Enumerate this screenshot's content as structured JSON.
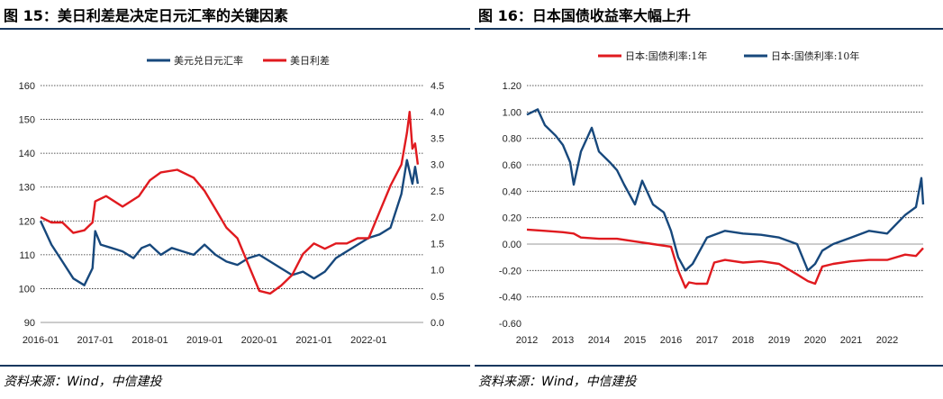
{
  "left": {
    "title": "图 15：美日利差是决定日元汇率的关键因素",
    "source": "资料来源：Wind，中信建投",
    "chart_data": {
      "type": "line",
      "x_labels": [
        "2016-01",
        "2017-01",
        "2018-01",
        "2019-01",
        "2020-01",
        "2021-01",
        "2022-01"
      ],
      "y_left": {
        "min": 90,
        "max": 160,
        "step": 10,
        "ticks": [
          "90",
          "100",
          "110",
          "120",
          "130",
          "140",
          "150",
          "160"
        ]
      },
      "y_right": {
        "min": 0.0,
        "max": 4.5,
        "step": 0.5,
        "ticks": [
          "0.0",
          "0.5",
          "1.0",
          "1.5",
          "2.0",
          "2.5",
          "3.0",
          "3.5",
          "4.0",
          "4.5"
        ]
      },
      "series": [
        {
          "name": "美元兑日元汇率",
          "axis": "left",
          "color": "#17487c",
          "x": [
            0,
            0.2,
            0.4,
            0.6,
            0.8,
            0.95,
            1.0,
            1.1,
            1.3,
            1.5,
            1.7,
            1.85,
            2.0,
            2.2,
            2.4,
            2.6,
            2.8,
            3.0,
            3.2,
            3.4,
            3.6,
            3.8,
            4.0,
            4.2,
            4.4,
            4.6,
            4.8,
            5.0,
            5.2,
            5.4,
            5.6,
            5.8,
            6.0,
            6.2,
            6.4,
            6.6,
            6.7,
            6.8,
            6.85,
            6.9
          ],
          "values": [
            120,
            113,
            108,
            103,
            101,
            106,
            117,
            113,
            112,
            111,
            109,
            112,
            113,
            110,
            112,
            111,
            110,
            113,
            110,
            108,
            107,
            109,
            110,
            108,
            106,
            104,
            105,
            103,
            105,
            109,
            111,
            113,
            115,
            116,
            118,
            128,
            138,
            131,
            136,
            131
          ]
        },
        {
          "name": "美日利差",
          "axis": "right",
          "color": "#e01a1f",
          "x": [
            0,
            0.2,
            0.4,
            0.6,
            0.8,
            0.95,
            1.0,
            1.2,
            1.5,
            1.8,
            2.0,
            2.2,
            2.5,
            2.8,
            3.0,
            3.2,
            3.4,
            3.6,
            3.8,
            4.0,
            4.2,
            4.4,
            4.6,
            4.8,
            5.0,
            5.2,
            5.4,
            5.6,
            5.8,
            6.0,
            6.2,
            6.4,
            6.6,
            6.7,
            6.75,
            6.8,
            6.85,
            6.9
          ],
          "values": [
            2.0,
            1.9,
            1.9,
            1.7,
            1.75,
            1.9,
            2.3,
            2.4,
            2.2,
            2.4,
            2.7,
            2.85,
            2.9,
            2.75,
            2.5,
            2.15,
            1.8,
            1.6,
            1.1,
            0.6,
            0.55,
            0.7,
            0.9,
            1.3,
            1.5,
            1.4,
            1.5,
            1.5,
            1.6,
            1.6,
            2.1,
            2.6,
            3.0,
            3.6,
            4.0,
            3.3,
            3.4,
            3.0
          ]
        }
      ]
    }
  },
  "right": {
    "title": "图 16：日本国债收益率大幅上升",
    "source": "资料来源：Wind，中信建投",
    "chart_data": {
      "type": "line",
      "x_labels": [
        "2012",
        "2013",
        "2014",
        "2015",
        "2016",
        "2017",
        "2018",
        "2019",
        "2020",
        "2021",
        "2022"
      ],
      "y_left": {
        "min": -0.6,
        "max": 1.2,
        "step": 0.2,
        "ticks": [
          "-0.60",
          "-0.40",
          "-0.20",
          "0.00",
          "0.20",
          "0.40",
          "0.60",
          "0.80",
          "1.00",
          "1.20"
        ]
      },
      "series": [
        {
          "name": "日本:国债利率:1年",
          "axis": "left",
          "color": "#e01a1f",
          "x": [
            0,
            0.5,
            1.0,
            1.3,
            1.5,
            2.0,
            2.5,
            3.0,
            3.5,
            4.0,
            4.2,
            4.4,
            4.5,
            4.7,
            5.0,
            5.2,
            5.5,
            6.0,
            6.5,
            7.0,
            7.5,
            7.8,
            8.0,
            8.2,
            8.5,
            9.0,
            9.5,
            10.0,
            10.5,
            10.8,
            11.0
          ],
          "values": [
            0.11,
            0.1,
            0.09,
            0.08,
            0.05,
            0.04,
            0.04,
            0.02,
            0.0,
            -0.02,
            -0.2,
            -0.33,
            -0.29,
            -0.3,
            -0.3,
            -0.14,
            -0.12,
            -0.14,
            -0.13,
            -0.15,
            -0.23,
            -0.28,
            -0.3,
            -0.17,
            -0.15,
            -0.13,
            -0.12,
            -0.12,
            -0.08,
            -0.09,
            -0.03
          ]
        },
        {
          "name": "日本:国债利率:10年",
          "axis": "left",
          "color": "#17487c",
          "x": [
            0,
            0.3,
            0.5,
            0.8,
            1.0,
            1.2,
            1.3,
            1.5,
            1.8,
            2.0,
            2.3,
            2.5,
            2.7,
            2.9,
            3.0,
            3.2,
            3.5,
            3.8,
            4.0,
            4.2,
            4.4,
            4.6,
            4.8,
            5.0,
            5.5,
            6.0,
            6.5,
            7.0,
            7.5,
            7.8,
            8.0,
            8.2,
            8.5,
            9.0,
            9.5,
            10.0,
            10.5,
            10.8,
            10.95,
            11.0
          ],
          "values": [
            0.98,
            1.02,
            0.9,
            0.82,
            0.75,
            0.62,
            0.45,
            0.7,
            0.88,
            0.7,
            0.62,
            0.56,
            0.45,
            0.35,
            0.3,
            0.48,
            0.3,
            0.24,
            0.1,
            -0.1,
            -0.2,
            -0.15,
            -0.05,
            0.05,
            0.1,
            0.08,
            0.07,
            0.05,
            0.0,
            -0.2,
            -0.15,
            -0.05,
            0.0,
            0.05,
            0.1,
            0.08,
            0.22,
            0.28,
            0.5,
            0.3
          ]
        }
      ]
    }
  }
}
